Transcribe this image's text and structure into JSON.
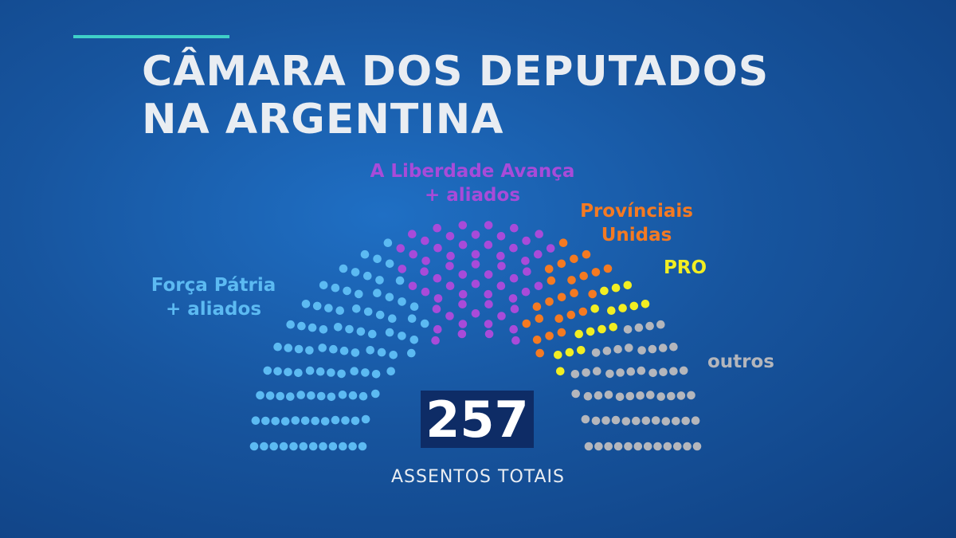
{
  "header": {
    "title_line1": "CÂMARA DOS DEPUTADOS",
    "title_line2": "NA ARGENTINA"
  },
  "chart_data": {
    "type": "parliament",
    "total_seats": 257,
    "total_value": "257",
    "total_label": "ASSENTOS TOTAIS",
    "series": [
      {
        "name": "Força Pátria + aliados",
        "label_lines": [
          "Força Pátria",
          "+ aliados"
        ],
        "seats": 98,
        "color": "#5cbaf2"
      },
      {
        "name": "A Liberdade Avança + aliados",
        "label_lines": [
          "A Liberdade Avança",
          "+ aliados"
        ],
        "seats": 60,
        "color": "#a84bd9"
      },
      {
        "name": "Provínciais Unidas",
        "label_lines": [
          "Provínciais",
          "Unidas"
        ],
        "seats": 24,
        "color": "#f47a22"
      },
      {
        "name": "PRO",
        "label_lines": [
          "PRO"
        ],
        "seats": 16,
        "color": "#f2ee22"
      },
      {
        "name": "outros",
        "label_lines": [
          "outros"
        ],
        "seats": 59,
        "color": "#b4b6bc"
      }
    ]
  }
}
